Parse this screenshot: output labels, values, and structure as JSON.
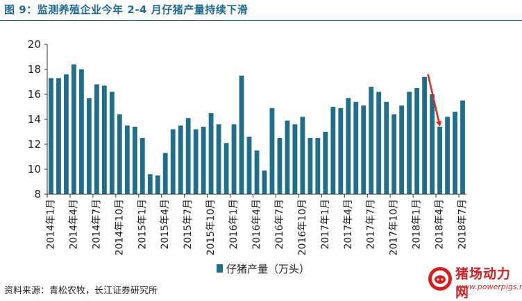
{
  "figure": {
    "title": "图 9：监测养殖企业今年 2-4 月仔猪产量持续下滑",
    "source": "资料来源：青松农牧，长江证券研究所"
  },
  "watermark": {
    "name": "猪场动力网",
    "url": "www.powerpigs.net"
  },
  "chart_data": {
    "type": "bar",
    "title": "",
    "xlabel": "",
    "ylabel": "",
    "ylim": [
      8,
      20
    ],
    "yticks": [
      8,
      10,
      12,
      14,
      16,
      18,
      20
    ],
    "grid": false,
    "legend_position": "bottom-center",
    "bar_color": "#1f6f8b",
    "arrow_color": "#e0261d",
    "categories": [
      "2014年1月",
      "2014年2月",
      "2014年3月",
      "2014年4月",
      "2014年5月",
      "2014年6月",
      "2014年7月",
      "2014年8月",
      "2014年9月",
      "2014年10月",
      "2014年11月",
      "2014年12月",
      "2015年1月",
      "2015年2月",
      "2015年3月",
      "2015年4月",
      "2015年5月",
      "2015年6月",
      "2015年7月",
      "2015年8月",
      "2015年9月",
      "2015年10月",
      "2015年11月",
      "2015年12月",
      "2016年1月",
      "2016年2月",
      "2016年3月",
      "2016年4月",
      "2016年5月",
      "2016年6月",
      "2016年7月",
      "2016年8月",
      "2016年9月",
      "2016年10月",
      "2016年11月",
      "2016年12月",
      "2017年1月",
      "2017年2月",
      "2017年3月",
      "2017年4月",
      "2017年5月",
      "2017年6月",
      "2017年7月",
      "2017年8月",
      "2017年9月",
      "2017年10月",
      "2017年11月",
      "2017年12月",
      "2018年1月",
      "2018年2月",
      "2018年3月",
      "2018年4月",
      "2018年5月",
      "2018年6月",
      "2018年7月"
    ],
    "tick_labels": [
      "2014年1月",
      "2014年4月",
      "2014年7月",
      "2014年10月",
      "2015年1月",
      "2015年4月",
      "2015年7月",
      "2015年10月",
      "2016年1月",
      "2016年4月",
      "2016年7月",
      "2016年10月",
      "2017年1月",
      "2017年4月",
      "2017年7月",
      "2017年10月",
      "2018年1月",
      "2018年4月",
      "2018年7月"
    ],
    "series": [
      {
        "name": "仔猪产量（万头）",
        "values": [
          17.3,
          17.3,
          17.6,
          18.4,
          18.0,
          15.7,
          16.8,
          16.7,
          16.2,
          14.4,
          13.5,
          13.4,
          12.5,
          9.6,
          9.5,
          11.3,
          13.2,
          13.5,
          14.1,
          13.2,
          13.4,
          14.5,
          13.6,
          12.1,
          13.6,
          17.5,
          12.6,
          11.5,
          9.9,
          14.9,
          12.5,
          13.9,
          13.6,
          14.2,
          12.5,
          12.5,
          13.0,
          15.0,
          14.9,
          15.7,
          15.4,
          15.1,
          16.6,
          16.2,
          15.4,
          14.4,
          15.1,
          16.2,
          16.5,
          17.4,
          16.0,
          13.4,
          14.2,
          14.6,
          15.5
        ]
      }
    ]
  }
}
